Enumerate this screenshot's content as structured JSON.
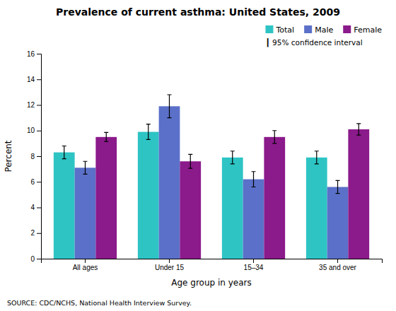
{
  "chart_data": {
    "type": "bar",
    "title": "Prevalence of current asthma: United States, 2009",
    "xlabel": "Age group in years",
    "ylabel": "Percent",
    "categories": [
      "All ages",
      "Under 15",
      "15–34",
      "35 and over"
    ],
    "series": [
      {
        "name": "Total",
        "color": "#2EC4C4",
        "values": [
          8.3,
          9.9,
          7.9,
          7.9
        ],
        "errors": [
          0.5,
          0.6,
          0.5,
          0.5
        ]
      },
      {
        "name": "Male",
        "color": "#5B70C8",
        "values": [
          7.1,
          11.9,
          6.2,
          5.6
        ],
        "errors": [
          0.5,
          0.9,
          0.6,
          0.5
        ]
      },
      {
        "name": "Female",
        "color": "#8B1A8B",
        "values": [
          9.5,
          7.6,
          9.5,
          10.1
        ],
        "errors": [
          0.35,
          0.55,
          0.5,
          0.45
        ]
      }
    ],
    "ylim": [
      0,
      16
    ],
    "yticks": [
      0,
      2,
      4,
      6,
      8,
      10,
      12,
      14,
      16
    ],
    "grid": false,
    "legend": "upper right",
    "annotations": [
      "┃  95% confidence interval",
      "SOURCE: CDC/NCHS, National Health Interview Survey."
    ]
  }
}
